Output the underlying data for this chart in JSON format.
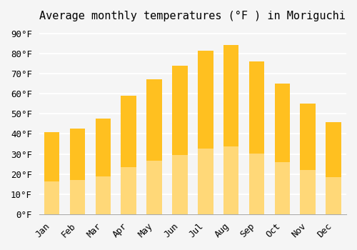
{
  "title": "Average monthly temperatures (°F ) in Moriguchi",
  "months": [
    "Jan",
    "Feb",
    "Mar",
    "Apr",
    "May",
    "Jun",
    "Jul",
    "Aug",
    "Sep",
    "Oct",
    "Nov",
    "Dec"
  ],
  "values": [
    41.0,
    42.5,
    47.5,
    59.0,
    67.0,
    74.0,
    81.5,
    84.0,
    76.0,
    65.0,
    55.0,
    46.0
  ],
  "bar_color_top": "#FFC020",
  "bar_color_bottom": "#FFD878",
  "yticks": [
    0,
    10,
    20,
    30,
    40,
    50,
    60,
    70,
    80,
    90
  ],
  "ytick_labels": [
    "0°F",
    "10°F",
    "20°F",
    "30°F",
    "40°F",
    "50°F",
    "60°F",
    "70°F",
    "80°F",
    "90°F"
  ],
  "ylim": [
    0,
    93
  ],
  "background_color": "#f5f5f5",
  "grid_color": "#ffffff",
  "title_fontsize": 11,
  "tick_fontsize": 9,
  "bar_edge_color": "none"
}
